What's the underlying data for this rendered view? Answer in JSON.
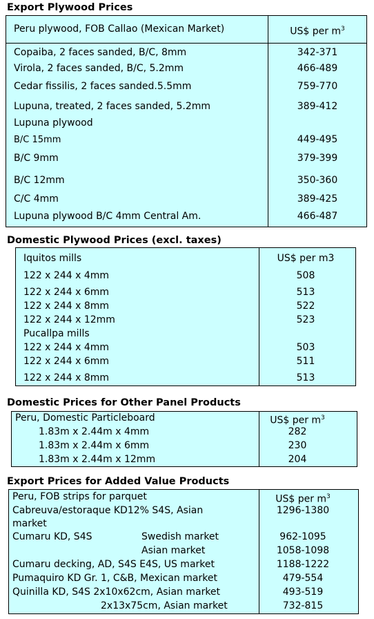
{
  "sections": [
    {
      "title": "Export Plywood Prices",
      "header": {
        "label": "Peru plywood, FOB Callao (Mexican Market)",
        "unit": "US$ per m",
        "unit_sup": "3"
      },
      "rows": [
        {
          "label": "Copaiba, 2 faces sanded, B/C, 8mm",
          "price": "342-371"
        },
        {
          "label": "Virola, 2 faces sanded, B/C, 5.2mm",
          "price": "466-489"
        },
        {
          "label": "Cedar fissilis, 2 faces sanded.5.5mm",
          "price": "759-770"
        },
        {
          "label": "Lupuna, treated, 2 faces sanded, 5.2mm",
          "price": "389-412"
        },
        {
          "label": "Lupuna plywood"
        },
        {
          "label": "B/C 15mm",
          "price": "449-495"
        },
        {
          "label": "B/C 9mm",
          "price": "379-399"
        },
        {
          "label": "B/C 12mm",
          "price": "350-360"
        },
        {
          "label": "C/C 4mm",
          "price": "389-425"
        },
        {
          "label": "Lupuna plywood B/C 4mm Central Am.",
          "price": "466-487"
        }
      ]
    },
    {
      "title": "Domestic Plywood Prices (excl. taxes)",
      "header": {
        "label": "Iquitos mills",
        "unit": "US$ per m3"
      },
      "rows": [
        {
          "label": "122 x 244 x 4mm",
          "price": 508
        },
        {
          "label": "122 x 244 x 6mm",
          "price": 513
        },
        {
          "label": "122 x 244 x 8mm",
          "price": 522
        },
        {
          "label": "122 x 244 x 12mm",
          "price": 523
        },
        {
          "label": "Pucallpa mills"
        },
        {
          "label": "122 x 244 x 4mm",
          "price": 503
        },
        {
          "label": "122 x 244 x 6mm",
          "price": 511
        },
        {
          "label": "122 x 244 x 8mm",
          "price": 513
        }
      ]
    },
    {
      "title": "Domestic Prices for Other Panel Products",
      "header": {
        "label": "Peru, Domestic Particleboard",
        "unit": "US$ per m",
        "unit_sup": "3"
      },
      "rows": [
        {
          "label": "1.83m x 2.44m x 4mm",
          "price": 282
        },
        {
          "label": "1.83m x 2.44m x 6mm",
          "price": 230
        },
        {
          "label": "1.83m x 2.44m x 12mm",
          "price": 204
        }
      ]
    },
    {
      "title": "Export Prices for Added Value Products",
      "header": {
        "label": "Peru, FOB strips for parquet",
        "unit": "US$ per m",
        "unit_sup": "3"
      },
      "rows": [
        {
          "label": "Cabreuva/estoraque KD12% S4S, Asian market",
          "price": "1296-1380"
        },
        {
          "label": "Cumaru KD, S4S",
          "market": "Swedish market",
          "price": "962-1095"
        },
        {
          "market": "Asian market",
          "price": "1058-1098"
        },
        {
          "label": "Cumaru decking, AD, S4S E4S,  US market",
          "price": "1188-1222"
        },
        {
          "label": "Pumaquiro KD Gr. 1, C&B,  Mexican market",
          "price": "479-554"
        },
        {
          "label": "Quinilla KD, S4S 2x10x62cm,  Asian market",
          "price": "493-519"
        },
        {
          "market": "2x13x75cm, Asian market",
          "price": "732-815"
        }
      ]
    }
  ]
}
